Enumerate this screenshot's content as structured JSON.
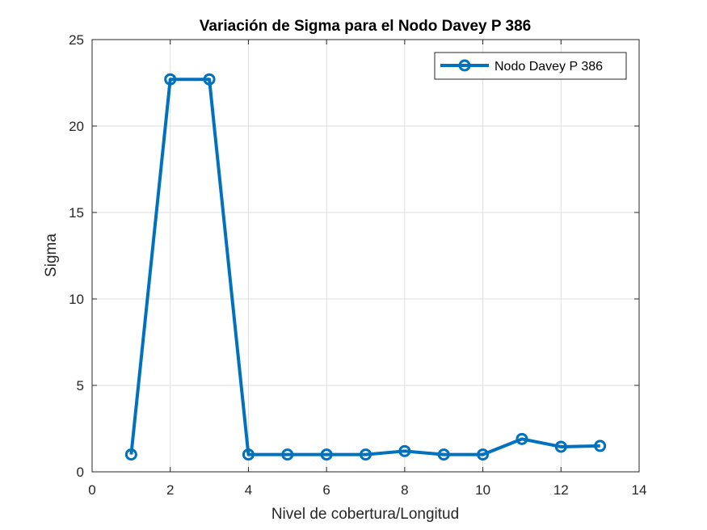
{
  "chart_data": {
    "type": "line",
    "title": "Variación de Sigma para el Nodo Davey P 386",
    "xlabel": "Nivel de cobertura/Longitud",
    "ylabel": "Sigma",
    "xlim": [
      0,
      14
    ],
    "ylim": [
      0,
      25
    ],
    "xticks": [
      "0",
      "2",
      "4",
      "6",
      "8",
      "10",
      "12",
      "14"
    ],
    "yticks": [
      "0",
      "5",
      "10",
      "15",
      "20",
      "25"
    ],
    "grid": true,
    "legend_position": "top-right",
    "series": [
      {
        "name": "Nodo Davey P 386",
        "color": "#0072BD",
        "marker": "circle",
        "x": [
          1,
          2,
          3,
          4,
          5,
          6,
          7,
          8,
          9,
          10,
          11,
          12,
          13
        ],
        "y": [
          1.0,
          22.7,
          22.7,
          1.0,
          1.0,
          1.0,
          1.0,
          1.2,
          1.0,
          1.0,
          1.9,
          1.45,
          1.5
        ]
      }
    ]
  }
}
